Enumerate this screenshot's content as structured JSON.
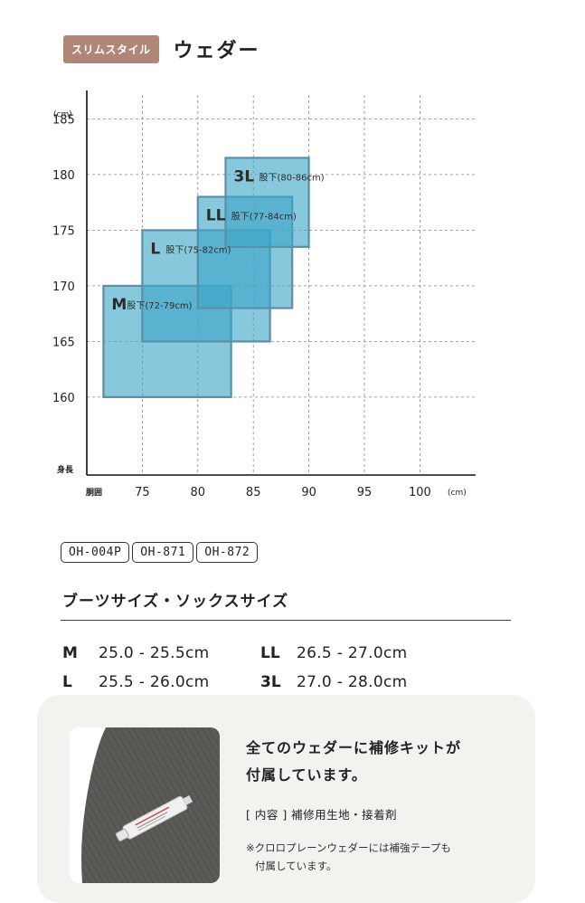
{
  "header": {
    "badge": "スリムスタイル",
    "title": "ウェダー"
  },
  "chart_data": {
    "type": "rectangle-region",
    "y_unit": "(cm)",
    "x_unit": "(cm)",
    "y_axis_label": "身長",
    "x_axis_label": "胴囲",
    "xlim": [
      70,
      102
    ],
    "ylim": [
      153,
      189
    ],
    "x_ticks": [
      75,
      80,
      85,
      90,
      95,
      100
    ],
    "y_ticks": [
      160,
      165,
      170,
      175,
      180,
      185
    ],
    "grid": "dashed",
    "sizes": [
      {
        "size": "M",
        "inseam": "股下(72-79cm)",
        "waist": [
          71.5,
          83
        ],
        "height": [
          160,
          170
        ]
      },
      {
        "size": "L",
        "inseam": "股下(75-82cm)",
        "waist": [
          75,
          86.5
        ],
        "height": [
          165,
          175
        ]
      },
      {
        "size": "LL",
        "inseam": "股下(77-84cm)",
        "waist": [
          80,
          88.5
        ],
        "height": [
          168,
          178
        ]
      },
      {
        "size": "3L",
        "inseam": "股下(80-86cm)",
        "waist": [
          82.5,
          90
        ],
        "height": [
          173.5,
          181.5
        ]
      }
    ],
    "colors": {
      "fill": "#3ea6c8",
      "stroke": "#5a8fa8",
      "text": "#2c2c2c"
    }
  },
  "codes": [
    "OH-004P",
    "OH-871",
    "OH-872"
  ],
  "boot_sizes": {
    "title": "ブーツサイズ・ソックスサイズ",
    "rows": [
      [
        {
          "label": "M",
          "value": "25.0 - 25.5cm"
        },
        {
          "label": "LL",
          "value": "26.5 - 27.0cm"
        }
      ],
      [
        {
          "label": "L",
          "value": "25.5 - 26.0cm"
        },
        {
          "label": "3L",
          "value": "27.0 - 28.0cm"
        }
      ]
    ]
  },
  "repair": {
    "line1": "全てのウェダーに補修キットが",
    "line2": "付属しています。",
    "contents": "[ 内容 ] 補修用生地・接着剤",
    "note1": "※クロロプレーンウェダーには補強テープも",
    "note2": "付属しています。"
  }
}
